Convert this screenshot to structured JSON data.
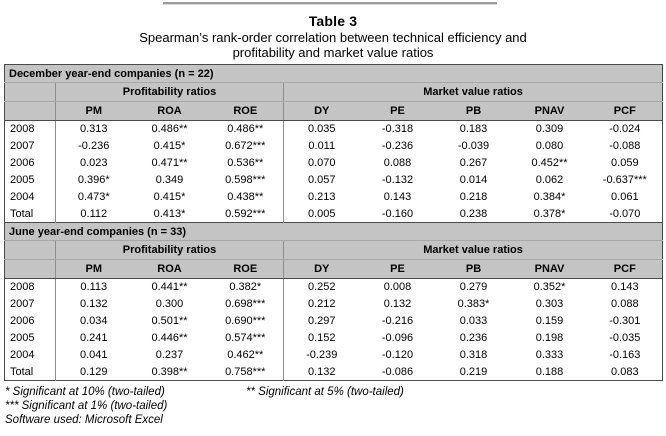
{
  "page": {
    "title": "Table 3",
    "subtitle_lines": [
      "Spearman’s rank-order correlation between technical efficiency and",
      "profitability and market value ratios"
    ]
  },
  "table": {
    "group_headers": {
      "profitability": "Profitability ratios",
      "market": "Market value ratios"
    },
    "column_headers": [
      "PM",
      "ROA",
      "ROE",
      "DY",
      "PE",
      "PB",
      "PNAV",
      "PCF"
    ],
    "sections": [
      {
        "band_label": "December year-end companies (n = 22)",
        "rows": [
          {
            "label": "2008",
            "values": [
              "0.313",
              "0.486**",
              "0.486**",
              "0.035",
              "-0.318",
              "0.183",
              "0.309",
              "-0.024"
            ]
          },
          {
            "label": "2007",
            "values": [
              "-0.236",
              "0.415*",
              "0.672***",
              "0.011",
              "-0.236",
              "-0.039",
              "0.080",
              "-0.088"
            ]
          },
          {
            "label": "2006",
            "values": [
              "0.023",
              "0.471**",
              "0.536**",
              "0.070",
              "0.088",
              "0.267",
              "0.452**",
              "0.059"
            ]
          },
          {
            "label": "2005",
            "values": [
              "0.396*",
              "0.349",
              "0.598***",
              "0.057",
              "-0.132",
              "0.014",
              "0.062",
              "-0.637***"
            ]
          },
          {
            "label": "2004",
            "values": [
              "0.473*",
              "0.415*",
              "0.438**",
              "0.213",
              "0.143",
              "0.218",
              "0.384*",
              "0.061"
            ]
          },
          {
            "label": "Total",
            "values": [
              "0.112",
              "0.413*",
              "0.592***",
              "0.005",
              "-0.160",
              "0.238",
              "0.378*",
              "-0.070"
            ]
          }
        ]
      },
      {
        "band_label": "June year-end companies (n = 33)",
        "rows": [
          {
            "label": "2008",
            "values": [
              "0.113",
              "0.441**",
              "0.382*",
              "0.252",
              "0.008",
              "0.279",
              "0.352*",
              "0.143"
            ]
          },
          {
            "label": "2007",
            "values": [
              "0.132",
              "0.300",
              "0.698***",
              "0.212",
              "0.132",
              "0.383*",
              "0.303",
              "0.088"
            ]
          },
          {
            "label": "2006",
            "values": [
              "0.034",
              "0.501**",
              "0.690***",
              "0.297",
              "-0.216",
              "0.033",
              "0.159",
              "-0.301"
            ]
          },
          {
            "label": "2005",
            "values": [
              "0.241",
              "0.446**",
              "0.574***",
              "0.152",
              "-0.096",
              "0.236",
              "0.198",
              "-0.035"
            ]
          },
          {
            "label": "2004",
            "values": [
              "0.041",
              "0.237",
              "0.462**",
              "-0.239",
              "-0.120",
              "0.318",
              "0.333",
              "-0.163"
            ]
          },
          {
            "label": "Total",
            "values": [
              "0.129",
              "0.398**",
              "0.758***",
              "0.132",
              "-0.086",
              "0.219",
              "0.188",
              "0.083"
            ]
          }
        ]
      }
    ]
  },
  "footnotes": {
    "sig10": "* Significant at 10% (two-tailed)",
    "sig5": "** Significant at 5% (two-tailed)",
    "sig1": "*** Significant at 1% (two-tailed)",
    "software": "Software used: Microsoft Excel"
  },
  "colors": {
    "band_gray": "#c4c4c4",
    "border_dark": "#4a4a4a",
    "border_light": "#a8a8a8",
    "line_mid": "#8d8d8d"
  }
}
